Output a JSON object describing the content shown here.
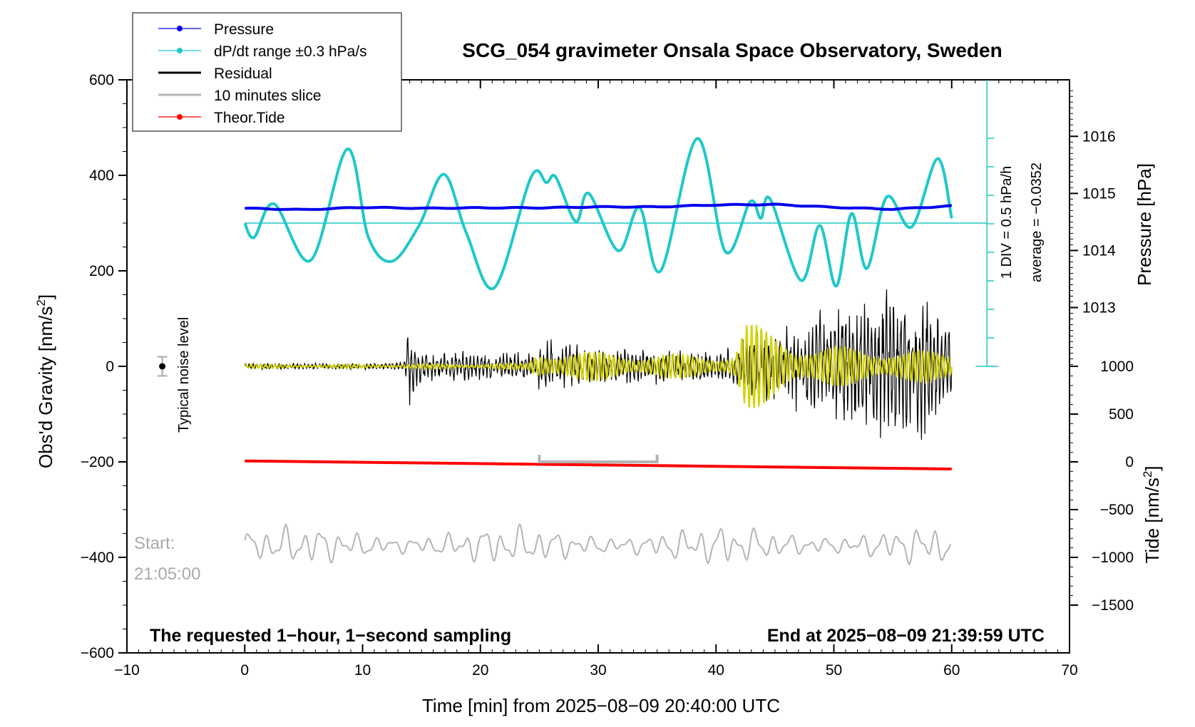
{
  "chart_data": {
    "type": "line",
    "title": "SCG_054 gravimeter Onsala Space Observatory, Sweden",
    "xlabel": "Time [min] from 2025−08−09 20:40:00 UTC",
    "ylabel_left": "Obs'd Gravity [nm/s",
    "ylabel_left_sup": "2",
    "ylabel_left_end": "]",
    "ylabel_right_top": "Pressure [hPa]",
    "ylabel_right_bottom": "Tide [nm/s",
    "ylabel_right_bottom_sup": "2",
    "ylabel_right_bottom_end": "]",
    "xlim": [
      -10,
      70
    ],
    "ylim": [
      -600,
      600
    ],
    "x_ticks": [
      "−10",
      "0",
      "10",
      "20",
      "30",
      "40",
      "50",
      "60",
      "70"
    ],
    "x_tick_values": [
      -10,
      0,
      10,
      20,
      30,
      40,
      50,
      60,
      70
    ],
    "y_ticks": [
      "600",
      "400",
      "200",
      "0",
      "−200",
      "−400",
      "−600"
    ],
    "y_tick_values": [
      600,
      400,
      200,
      0,
      -200,
      -400,
      -600
    ],
    "pressure_ticks": [
      "1016",
      "1015",
      "1014",
      "1013"
    ],
    "pressure_tick_values": [
      1016,
      1015,
      1014,
      1013
    ],
    "pressure_axis": {
      "value_at_600": 1016.99,
      "value_at_0": 1011.97
    },
    "tide_ticks": [
      "1000",
      "500",
      "0",
      "−500",
      "−1000",
      "−1500"
    ],
    "tide_tick_values": [
      1000,
      500,
      0,
      -500,
      -1000,
      -1500
    ],
    "tide_axis": {
      "offset": -200,
      "scale": 0.2
    },
    "legend": [
      {
        "label": "Pressure",
        "color": "#0000ee",
        "marker": true
      },
      {
        "label": "dP/dt range ±0.3 hPa/s",
        "color": "#20c8c8",
        "marker": true
      },
      {
        "label": "Residual",
        "color": "#000000",
        "marker": false
      },
      {
        "label": "10 minutes slice",
        "color": "#b4b4b4",
        "marker": false
      },
      {
        "label": "Theor.Tide",
        "color": "#ff0000",
        "marker": true
      }
    ],
    "pressure_series": {
      "name": "Pressure",
      "x": [
        0,
        5,
        10,
        15,
        20,
        25,
        30,
        35,
        40,
        45,
        50,
        55,
        60
      ],
      "y": [
        331,
        328,
        333,
        331,
        332,
        332,
        334,
        334,
        338,
        339,
        333,
        329,
        336
      ]
    },
    "dpdt_series": {
      "name": "dP/dt range ±0.3 hPa/s",
      "baseline": 300,
      "x": [
        0,
        0.8,
        2.5,
        5.6,
        8.7,
        10.5,
        12.5,
        14.8,
        16.9,
        18.8,
        21.2,
        24.3,
        25.6,
        26.4,
        28.1,
        29.2,
        31.7,
        33.5,
        35.3,
        38.4,
        40.8,
        42.9,
        43.8,
        44.6,
        47.2,
        48.8,
        50.2,
        51.5,
        52.8,
        54.5,
        56.6,
        58.8,
        60
      ],
      "y": [
        300,
        270,
        340,
        222,
        455,
        270,
        220,
        295,
        402,
        280,
        165,
        396,
        385,
        396,
        303,
        362,
        242,
        333,
        200,
        477,
        240,
        345,
        310,
        350,
        180,
        295,
        168,
        320,
        205,
        355,
        292,
        435,
        310
      ]
    },
    "tide_series": {
      "name": "Theor.Tide",
      "x": [
        0,
        60
      ],
      "y": [
        -198,
        -215
      ]
    },
    "residual_series": {
      "name": "Residual",
      "x": [
        0,
        5,
        10,
        13.5,
        14,
        15,
        20,
        24.5,
        25,
        30,
        35,
        40,
        41.8,
        42.5,
        44,
        47,
        50,
        54,
        57.5,
        58,
        60
      ],
      "envelope": [
        8,
        8,
        8,
        10,
        110,
        40,
        35,
        35,
        70,
        50,
        40,
        40,
        50,
        115,
        90,
        110,
        150,
        185,
        210,
        175,
        105
      ]
    },
    "filtered_series": {
      "name": "filtered (yellow)",
      "color": "#d4d400",
      "x": [
        0,
        10,
        24,
        25,
        35,
        41.5,
        42.5,
        44,
        48,
        60
      ],
      "envelope": [
        4,
        4,
        6,
        35,
        25,
        25,
        100,
        80,
        45,
        30
      ]
    },
    "slice_series": {
      "name": "10 minutes slice",
      "baseline": -375,
      "amplitude": 40,
      "x_range": [
        0,
        60
      ]
    },
    "slice_bracket": {
      "x_start": 25,
      "x_end": 35,
      "y": -200
    },
    "noise_marker": {
      "x": -7,
      "y": 0,
      "err": 20,
      "label": "Typical noise level"
    },
    "pressure_scale_annotation": [
      "1 DIV = 0.5 hPa/h",
      "average = −0.0352"
    ],
    "start_label": [
      "Start:",
      "21:05:00"
    ],
    "footer_left": "The requested 1−hour, 1−second sampling",
    "footer_right": "End at 2025−08−09 21:39:59 UTC"
  }
}
